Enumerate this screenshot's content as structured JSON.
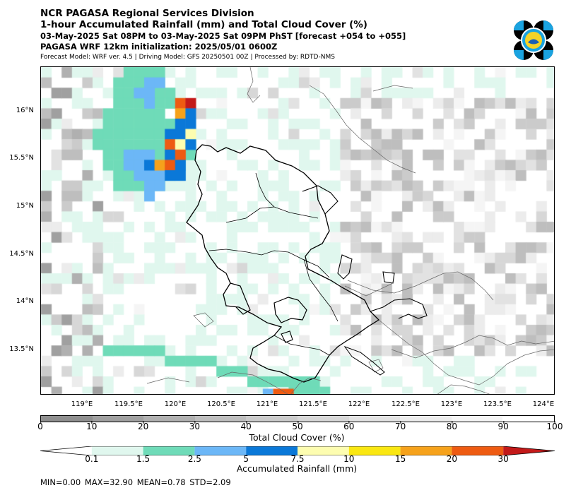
{
  "header": {
    "title_line1": "NCR PAGASA Regional Services Division",
    "title_line2": "1-hour Accumulated Rainfall (mm) and Total Cloud Cover (%)",
    "valid_time": "03-May-2025 Sat 08PM to 03-May-2025 Sat 09PM PhST [forecast +054 to +055]",
    "initialization": "PAGASA WRF 12km initialization: 2025/05/01 0600Z",
    "model_info": "Forecast Model: WRF ver. 4.5 | Driving Model: GFS 20250501 00Z | Processed by: RDTD-NMS"
  },
  "logo": {
    "name": "pagasa-logo",
    "colors": {
      "blue": "#1aa3e0",
      "yellow": "#f5d327",
      "black": "#000000"
    }
  },
  "map": {
    "lat_labels": [
      "16°N",
      "15.5°N",
      "15°N",
      "14.5°N",
      "14°N",
      "13.5°N"
    ],
    "lat_values": [
      16,
      15.5,
      15,
      14.5,
      14,
      13.5
    ],
    "lon_labels": [
      "119°E",
      "119.5°E",
      "120°E",
      "120.5°E",
      "121°E",
      "121.5°E",
      "122°E",
      "122.5°E",
      "123°E",
      "123.5°E",
      "124°E"
    ],
    "lon_values": [
      119,
      119.5,
      120,
      120.5,
      121,
      121.5,
      122,
      122.5,
      123,
      123.5,
      124
    ],
    "extent": {
      "lon_min": 118.6,
      "lon_max": 124.1,
      "lat_min": 13.0,
      "lat_max": 16.45
    }
  },
  "cloud_colorbar": {
    "label": "Total Cloud Cover (%)",
    "ticks": [
      "0",
      "10",
      "20",
      "30",
      "40",
      "50",
      "60",
      "70",
      "80",
      "90",
      "100"
    ],
    "colors": [
      "#8f8f8f",
      "#a0a0a0",
      "#b0b0b0",
      "#bebebe",
      "#cbcbcb",
      "#d7d7d7",
      "#e2e2e2",
      "#ececec",
      "#f5f5f5",
      "#ffffff"
    ]
  },
  "rain_colorbar": {
    "label": "Accumulated Rainfall (mm)",
    "ticks": [
      "0.1",
      "1.5",
      "2.5",
      "5",
      "7.5",
      "10",
      "15",
      "20",
      "30"
    ],
    "colors": [
      "#ffffff",
      "#e0f7ee",
      "#6fdbb8",
      "#6cb7f7",
      "#0a78d8",
      "#fdfdb0",
      "#fae711",
      "#f6a21b",
      "#ee5b12",
      "#c31a1a"
    ]
  },
  "stats": {
    "text": "MIN=0.00   MAX=32.90   MEAN=0.78   STD=2.09"
  }
}
